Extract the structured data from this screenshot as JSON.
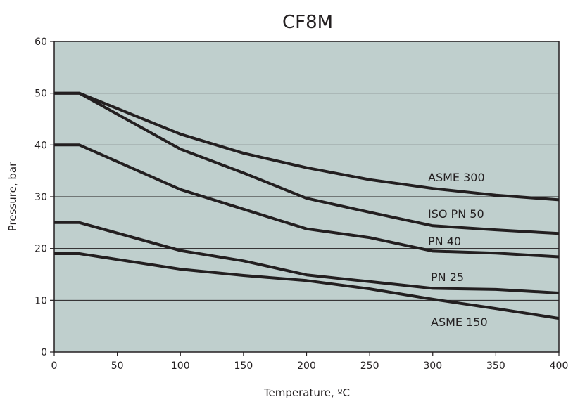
{
  "chart_data": {
    "type": "line",
    "title": "CF8M",
    "xlabel": "Temperature, ºC",
    "ylabel": "Pressure, bar",
    "xlim": [
      0,
      400
    ],
    "ylim": [
      0,
      60
    ],
    "xticks": [
      0,
      50,
      100,
      150,
      200,
      250,
      300,
      350,
      400
    ],
    "yticks": [
      0,
      10,
      20,
      30,
      40,
      50,
      60
    ],
    "grid": "horizontal",
    "plot_background": "#bfcfcd",
    "line_color": "#231f20",
    "series": [
      {
        "name": "ASME 300",
        "x": [
          0,
          20,
          100,
          150,
          200,
          250,
          300,
          350,
          400
        ],
        "y": [
          50,
          50,
          42.1,
          38.4,
          35.6,
          33.3,
          31.6,
          30.3,
          29.4
        ]
      },
      {
        "name": "ISO PN 50",
        "x": [
          0,
          20,
          100,
          150,
          200,
          250,
          300,
          350,
          400
        ],
        "y": [
          50,
          50,
          39.2,
          34.6,
          29.7,
          27,
          24.4,
          23.6,
          22.9
        ]
      },
      {
        "name": "PN 40",
        "x": [
          0,
          20,
          100,
          150,
          200,
          250,
          300,
          350,
          400
        ],
        "y": [
          40,
          40,
          31.4,
          27.6,
          23.8,
          22.1,
          19.5,
          19.1,
          18.4
        ]
      },
      {
        "name": "PN 25",
        "x": [
          0,
          20,
          100,
          150,
          200,
          250,
          300,
          350,
          400
        ],
        "y": [
          25,
          25,
          19.6,
          17.6,
          14.9,
          13.6,
          12.3,
          12.1,
          11.4
        ]
      },
      {
        "name": "ASME 150",
        "x": [
          0,
          20,
          100,
          150,
          200,
          250,
          300,
          350,
          400
        ],
        "y": [
          19,
          19,
          16,
          14.8,
          13.8,
          12.2,
          10.2,
          8.4,
          6.5
        ]
      }
    ]
  }
}
